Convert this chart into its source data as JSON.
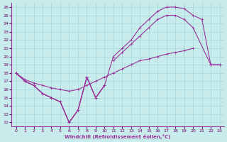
{
  "xlabel": "Windchill (Refroidissement éolien,°C)",
  "bg_color": "#c8ecec",
  "line_color": "#993399",
  "grid_color": "#aadddd",
  "xlim": [
    -0.5,
    23.5
  ],
  "ylim": [
    11.5,
    26.5
  ],
  "xticks": [
    0,
    1,
    2,
    3,
    4,
    5,
    6,
    7,
    8,
    9,
    10,
    11,
    12,
    13,
    14,
    15,
    16,
    17,
    18,
    19,
    20,
    21,
    22,
    23
  ],
  "yticks": [
    12,
    13,
    14,
    15,
    16,
    17,
    18,
    19,
    20,
    21,
    22,
    23,
    24,
    25,
    26
  ],
  "line_wavy_x": [
    0,
    1,
    2,
    3,
    4,
    5,
    6,
    7,
    8,
    9,
    10
  ],
  "line_wavy_y": [
    18,
    17,
    16.5,
    15.5,
    15,
    14.5,
    12,
    13.5,
    17.5,
    15,
    16.5
  ],
  "line_upper_x": [
    0,
    1,
    2,
    3,
    4,
    5,
    6,
    7,
    8,
    9,
    10,
    11,
    12,
    13,
    14,
    15,
    16,
    17,
    18,
    19,
    20,
    21,
    22,
    23
  ],
  "line_upper_y": [
    18,
    17,
    16.5,
    15.5,
    15,
    14.5,
    12,
    13.5,
    17.5,
    15,
    16.5,
    20,
    21,
    22,
    23.5,
    24.5,
    25.5,
    26,
    26,
    25.8,
    25,
    24.5,
    19,
    19
  ],
  "line_mid_x": [
    0,
    1,
    2,
    3,
    4,
    5,
    6,
    7,
    8,
    9,
    10,
    11,
    12,
    13,
    14,
    15,
    16,
    17,
    18,
    19,
    20,
    21,
    22,
    23
  ],
  "line_mid_y": [
    18,
    17,
    16.5,
    15.5,
    15,
    14.5,
    12,
    13.5,
    17.5,
    15,
    16.5,
    19.5,
    20.5,
    21.5,
    22.5,
    23.5,
    24.5,
    25,
    25,
    24.5,
    23.5,
    null,
    19,
    19
  ],
  "line_low_x": [
    0,
    1,
    2,
    3,
    4,
    5,
    6,
    7,
    8,
    9,
    10,
    11,
    12,
    13,
    14,
    15,
    16,
    17,
    18,
    19,
    20,
    21,
    22,
    23
  ],
  "line_low_y": [
    18,
    17.2,
    16.8,
    16.5,
    16.2,
    16,
    15.8,
    16,
    16.5,
    17,
    17.5,
    18,
    18.5,
    19,
    19.5,
    19.7,
    20,
    20.3,
    20.5,
    20.7,
    21,
    null,
    19,
    19
  ]
}
